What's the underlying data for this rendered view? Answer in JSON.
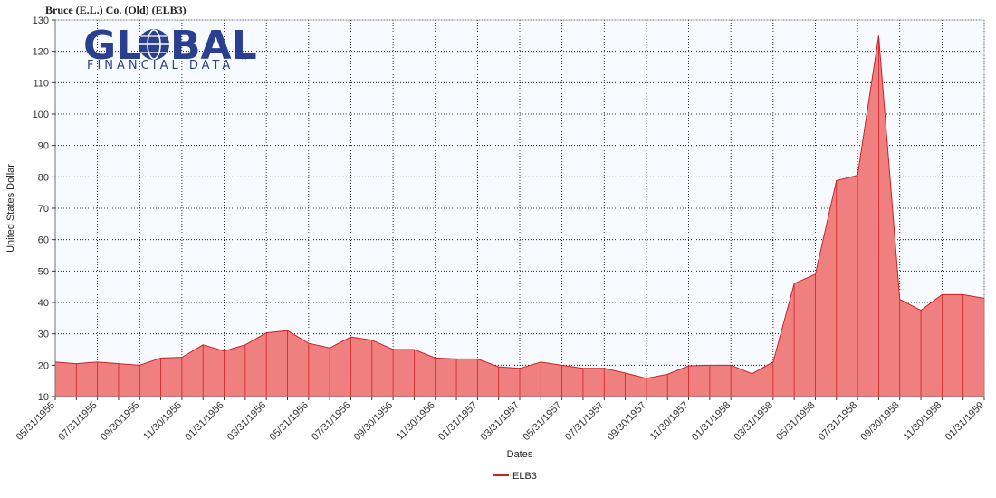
{
  "page": {
    "title": "Bruce (E.L.) Co. (Old) (ELB3)"
  },
  "logo": {
    "main_left": "GL",
    "main_right": "BAL",
    "sub": "FINANCIAL DATA",
    "trademark": "™",
    "color": "#2b3f8f"
  },
  "chart_data": {
    "type": "area",
    "title": "Bruce (E.L.) Co. (Old) (ELB3)",
    "xlabel": "Dates",
    "ylabel": "United States Dollar",
    "ylim": [
      10,
      130
    ],
    "yticks": [
      10,
      20,
      30,
      40,
      50,
      60,
      70,
      80,
      90,
      100,
      110,
      120,
      130
    ],
    "grid": true,
    "legend_position": "bottom-center",
    "x_tick_labels": [
      "05/31/1955",
      "07/31/1955",
      "09/30/1955",
      "11/30/1955",
      "01/31/1956",
      "03/31/1956",
      "05/31/1956",
      "07/31/1956",
      "09/30/1956",
      "11/30/1956",
      "01/31/1957",
      "03/31/1957",
      "05/31/1957",
      "07/31/1957",
      "09/30/1957",
      "11/30/1957",
      "01/31/1958",
      "03/31/1958",
      "05/31/1958",
      "07/31/1958",
      "09/30/1958",
      "11/30/1958",
      "01/31/1959"
    ],
    "x": [
      "05/31/1955",
      "06/30/1955",
      "07/31/1955",
      "08/31/1955",
      "09/30/1955",
      "10/31/1955",
      "11/30/1955",
      "12/31/1955",
      "01/31/1956",
      "02/29/1956",
      "03/31/1956",
      "04/30/1956",
      "05/31/1956",
      "06/30/1956",
      "07/31/1956",
      "08/31/1956",
      "09/30/1956",
      "10/31/1956",
      "11/30/1956",
      "12/31/1956",
      "01/31/1957",
      "02/28/1957",
      "03/31/1957",
      "04/30/1957",
      "05/31/1957",
      "06/30/1957",
      "07/31/1957",
      "08/31/1957",
      "09/30/1957",
      "10/31/1957",
      "11/30/1957",
      "12/31/1957",
      "01/31/1958",
      "02/28/1958",
      "03/31/1958",
      "04/30/1958",
      "05/31/1958",
      "06/30/1958",
      "07/31/1958",
      "08/31/1958",
      "09/30/1958",
      "10/31/1958",
      "11/30/1958",
      "12/31/1958",
      "01/31/1959"
    ],
    "series": [
      {
        "name": "ELB3",
        "color": "#cc2222",
        "fill": "#f08080",
        "values": [
          21,
          20.5,
          21,
          20.5,
          20,
          22.3,
          22.5,
          26.5,
          24.5,
          26.5,
          30.3,
          31,
          27,
          25.5,
          29,
          28,
          25,
          25,
          22.3,
          22,
          22,
          19.5,
          19,
          21,
          20,
          19,
          19,
          17.5,
          15.8,
          17.1,
          19.8,
          20,
          20,
          17.3,
          21,
          46,
          49,
          78.8,
          80.5,
          125,
          41,
          37.5,
          42.5,
          42.5,
          41.3
        ]
      }
    ]
  }
}
